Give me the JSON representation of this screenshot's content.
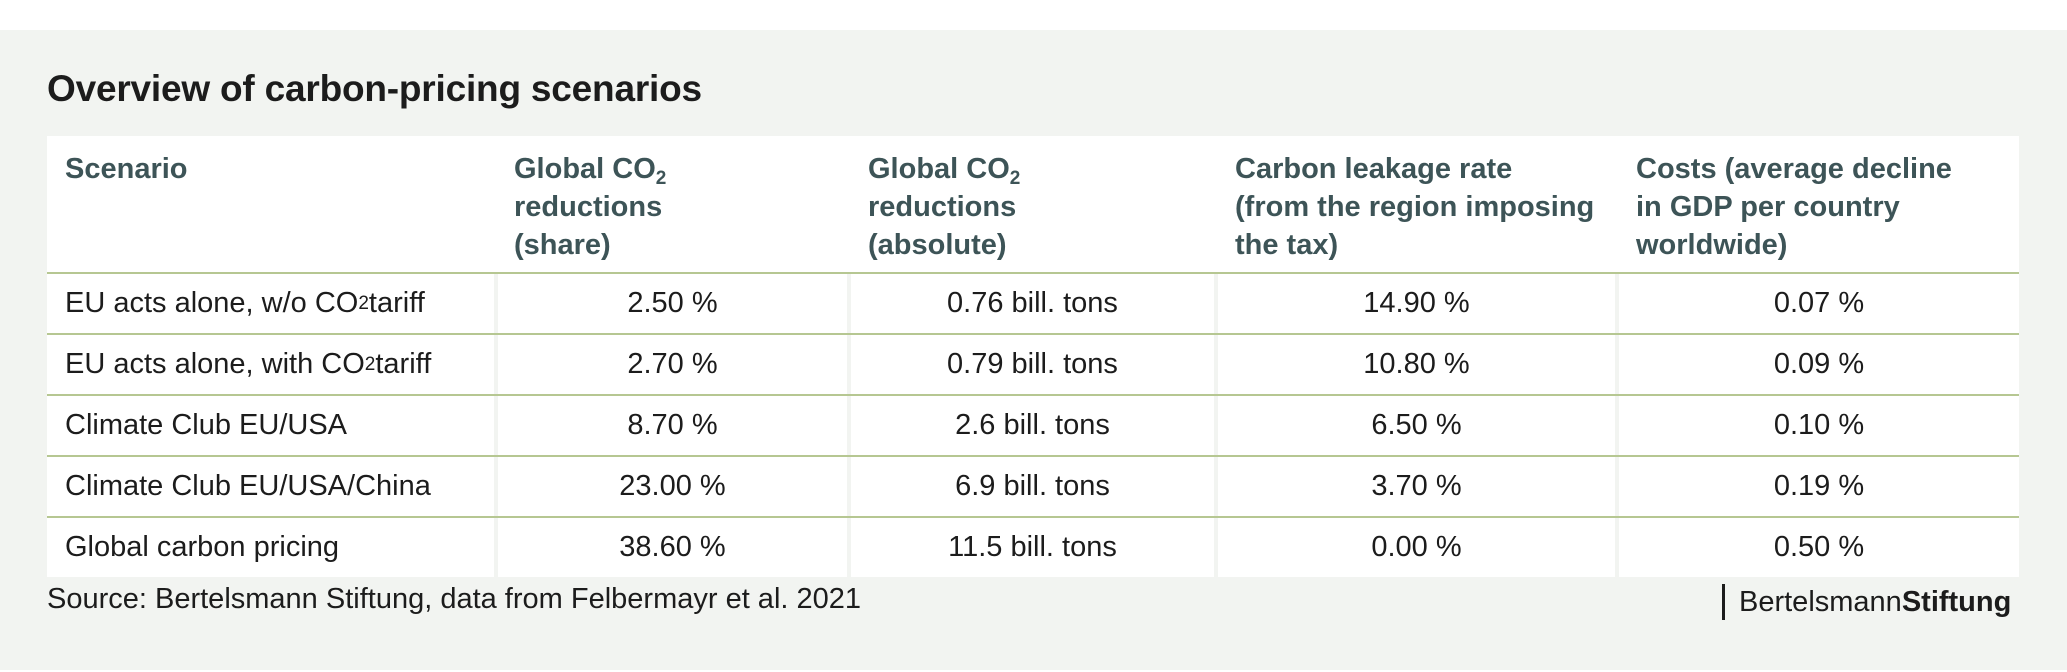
{
  "title": "Overview of carbon-pricing scenarios",
  "table": {
    "headers": [
      {
        "lines": [
          "Scenario"
        ]
      },
      {
        "lines": [
          "Global CO",
          "reductions",
          "(share)"
        ],
        "sub": "2"
      },
      {
        "lines": [
          "Global CO",
          "reductions",
          "(absolute)"
        ],
        "sub": "2"
      },
      {
        "lines": [
          "Carbon leakage rate",
          "(from the region imposing",
          "the tax)"
        ]
      },
      {
        "lines": [
          "Costs (average decline",
          "in GDP per country",
          "worldwide)"
        ]
      }
    ],
    "rows": [
      {
        "scenario_pre": "EU acts alone, w/o CO",
        "scenario_sub": "2",
        "scenario_post": " tariff",
        "share": "2.50 %",
        "absolute": "0.76 bill. tons",
        "leakage": "14.90 %",
        "costs": "0.07 %"
      },
      {
        "scenario_pre": "EU acts alone, with CO",
        "scenario_sub": "2",
        "scenario_post": " tariff",
        "share": "2.70 %",
        "absolute": "0.79 bill. tons",
        "leakage": "10.80 %",
        "costs": "0.09 %"
      },
      {
        "scenario_pre": "Climate Club EU/USA",
        "scenario_sub": "",
        "scenario_post": "",
        "share": "8.70 %",
        "absolute": "2.6 bill. tons",
        "leakage": "6.50 %",
        "costs": "0.10 %"
      },
      {
        "scenario_pre": "Climate Club EU/USA/China",
        "scenario_sub": "",
        "scenario_post": "",
        "share": "23.00 %",
        "absolute": "6.9 bill. tons",
        "leakage": "3.70 %",
        "costs": "0.19 %"
      },
      {
        "scenario_pre": "Global carbon pricing",
        "scenario_sub": "",
        "scenario_post": "",
        "share": "38.60 %",
        "absolute": "11.5 bill. tons",
        "leakage": "0.00 %",
        "costs": "0.50 %"
      }
    ]
  },
  "source": "Source: Bertelsmann Stiftung, data from Felbermayr et al. 2021",
  "logo": {
    "part1": "Bertelsmann",
    "part2": "Stiftung"
  },
  "colors": {
    "background": "#f2f4f1",
    "header_text": "#3d5457",
    "rule": "#b6c792"
  }
}
